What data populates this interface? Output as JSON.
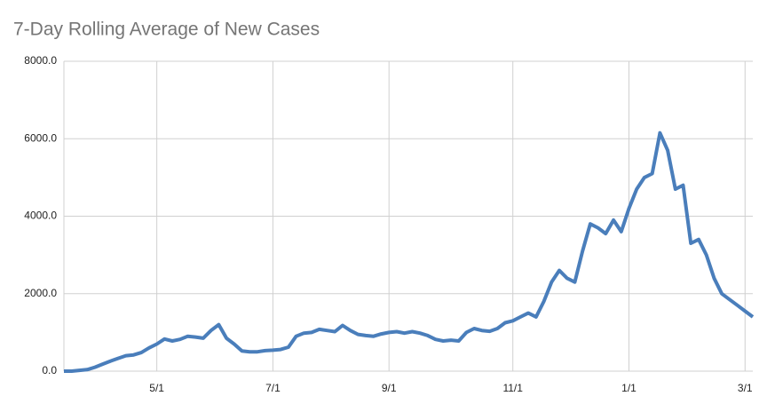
{
  "chart_data": {
    "type": "line",
    "title": "7-Day Rolling Average of New Cases",
    "categories": [
      null,
      null,
      null,
      null,
      null,
      null,
      null,
      null,
      null,
      null,
      null,
      null,
      "5/1",
      null,
      null,
      null,
      null,
      null,
      null,
      null,
      null,
      null,
      null,
      null,
      null,
      null,
      null,
      "7/1",
      null,
      null,
      null,
      null,
      null,
      null,
      null,
      null,
      null,
      null,
      null,
      null,
      null,
      null,
      "9/1",
      null,
      null,
      null,
      null,
      null,
      null,
      null,
      null,
      null,
      null,
      null,
      null,
      null,
      null,
      null,
      "11/1",
      null,
      null,
      null,
      null,
      null,
      null,
      null,
      null,
      null,
      null,
      null,
      null,
      null,
      null,
      "1/1",
      null,
      null,
      null,
      null,
      null,
      null,
      null,
      null,
      null,
      null,
      null,
      null,
      null,
      null,
      "3/1",
      null
    ],
    "series": [
      {
        "color": "#4a7ebb",
        "values": [
          0,
          0,
          20,
          40,
          100,
          180,
          260,
          330,
          400,
          420,
          480,
          600,
          700,
          830,
          780,
          820,
          900,
          880,
          850,
          1050,
          1200,
          850,
          700,
          520,
          500,
          500,
          530,
          540,
          560,
          620,
          900,
          980,
          1000,
          1080,
          1050,
          1020,
          1180,
          1050,
          950,
          920,
          900,
          960,
          1000,
          1020,
          980,
          1020,
          980,
          920,
          820,
          780,
          800,
          780,
          1000,
          1100,
          1050,
          1030,
          1100,
          1250,
          1300,
          1400,
          1500,
          1400,
          1800,
          2300,
          2600,
          2400,
          2300,
          3100,
          3800,
          3700,
          3550,
          3900,
          3600,
          4200,
          4700,
          5000,
          5100,
          6150,
          5700,
          4700,
          4800,
          3300,
          3400,
          3000,
          2400,
          2000,
          1850,
          1700,
          1550,
          1400
        ]
      }
    ],
    "ylim": [
      0,
      8000
    ],
    "yticks": [
      {
        "value": 0,
        "label": "0.0"
      },
      {
        "value": 2000,
        "label": "2000.0"
      },
      {
        "value": 4000,
        "label": "4000.0"
      },
      {
        "value": 6000,
        "label": "6000.0"
      },
      {
        "value": 8000,
        "label": "8000.0"
      }
    ],
    "grid": true
  }
}
